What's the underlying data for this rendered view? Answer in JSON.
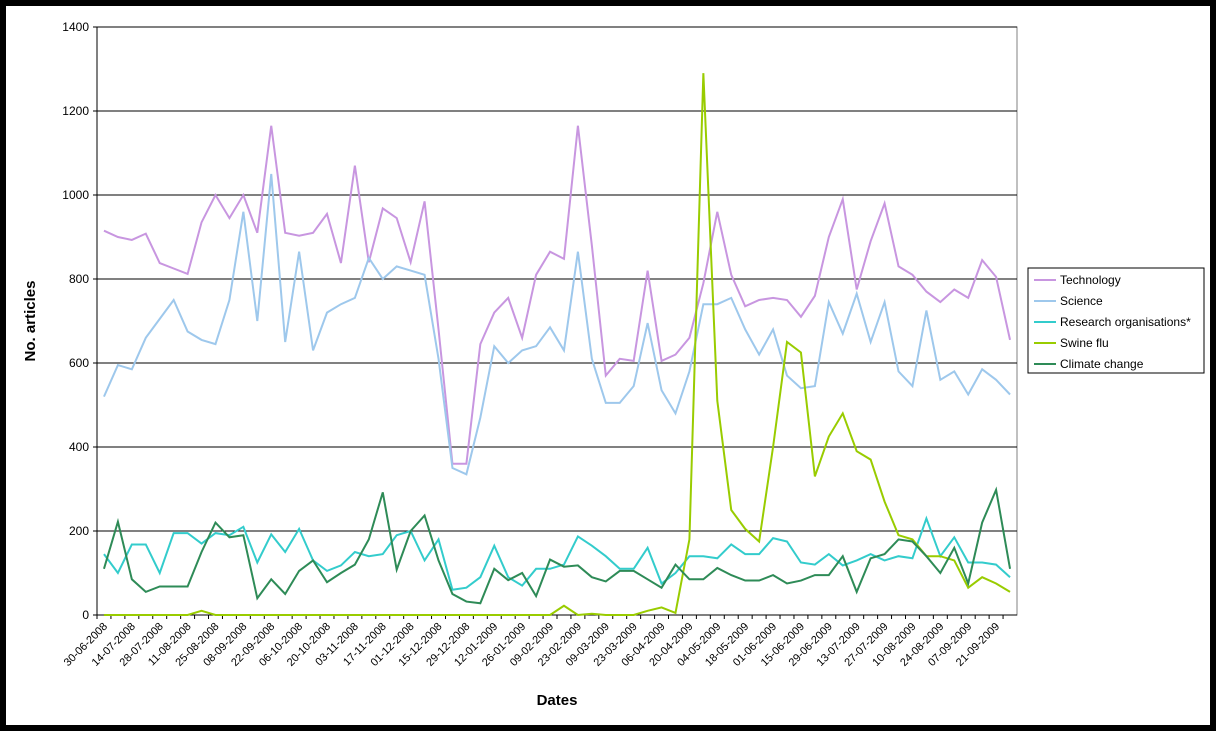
{
  "chart_data": {
    "type": "line",
    "xlabel": "Dates",
    "ylabel": "No. articles",
    "categories": [
      "30-06-2008",
      null,
      "14-07-2008",
      null,
      "28-07-2008",
      null,
      "11-08-2008",
      null,
      "25-08-2008",
      null,
      "08-09-2008",
      null,
      "22-09-2008",
      null,
      "06-10-2008",
      null,
      "20-10-2008",
      null,
      "03-11-2008",
      null,
      "17-11-2008",
      null,
      "01-12-2008",
      null,
      "15-12-2008",
      null,
      "29-12-2008",
      null,
      "12-01-2009",
      null,
      "26-01-2009",
      null,
      "09-02-2009",
      null,
      "23-02-2009",
      null,
      "09-03-2009",
      null,
      "23-03-2009",
      null,
      "06-04-2009",
      null,
      "20-04-2009",
      null,
      "04-05-2009",
      null,
      "18-05-2009",
      null,
      "01-06-2009",
      null,
      "15-06-2009",
      null,
      "29-06-2009",
      null,
      "13-07-2009",
      null,
      "27-07-2009",
      null,
      "10-08-2009",
      null,
      "24-08-2009",
      null,
      "07-09-2009",
      null,
      "21-09-2009",
      null
    ],
    "series": [
      {
        "name": "Technology",
        "color": "#c896e0",
        "values": [
          915,
          900,
          893,
          908,
          838,
          825,
          812,
          935,
          1000,
          945,
          1000,
          910,
          1165,
          910,
          903,
          910,
          955,
          838,
          1070,
          840,
          968,
          945,
          840,
          985,
          680,
          360,
          360,
          645,
          720,
          755,
          660,
          810,
          865,
          848,
          1165,
          880,
          570,
          610,
          605,
          820,
          605,
          620,
          660,
          790,
          960,
          810,
          735,
          750,
          755,
          750,
          710,
          760,
          900,
          990,
          775,
          890,
          980,
          830,
          810,
          770,
          745,
          775,
          755,
          845,
          805,
          655
        ]
      },
      {
        "name": "Science",
        "color": "#9ec8ec",
        "values": [
          520,
          595,
          585,
          660,
          705,
          750,
          675,
          655,
          645,
          750,
          960,
          700,
          1050,
          650,
          865,
          630,
          720,
          740,
          755,
          850,
          800,
          830,
          820,
          810,
          610,
          350,
          335,
          470,
          640,
          600,
          630,
          640,
          685,
          630,
          865,
          610,
          505,
          505,
          545,
          695,
          535,
          480,
          580,
          740,
          740,
          755,
          680,
          620,
          680,
          570,
          540,
          545,
          745,
          670,
          765,
          650,
          745,
          580,
          545,
          725,
          560,
          580,
          525,
          585,
          560,
          525
        ]
      },
      {
        "name": "Research organisations*",
        "color": "#33cccc",
        "values": [
          145,
          100,
          168,
          168,
          100,
          195,
          195,
          170,
          195,
          190,
          210,
          125,
          192,
          150,
          205,
          130,
          105,
          118,
          150,
          140,
          145,
          190,
          200,
          130,
          180,
          60,
          65,
          90,
          165,
          90,
          70,
          110,
          110,
          120,
          187,
          165,
          140,
          110,
          110,
          160,
          75,
          100,
          140,
          140,
          135,
          168,
          145,
          145,
          183,
          175,
          125,
          120,
          145,
          118,
          130,
          145,
          130,
          140,
          135,
          230,
          140,
          185,
          125,
          125,
          120,
          90
        ]
      },
      {
        "name": "Swine flu",
        "color": "#99cc00",
        "values": [
          0,
          0,
          0,
          0,
          0,
          0,
          0,
          10,
          0,
          0,
          0,
          0,
          0,
          0,
          0,
          0,
          0,
          0,
          0,
          0,
          0,
          0,
          0,
          0,
          0,
          0,
          0,
          0,
          0,
          0,
          0,
          0,
          0,
          22,
          0,
          3,
          0,
          0,
          0,
          10,
          18,
          5,
          180,
          1290,
          510,
          250,
          205,
          175,
          400,
          650,
          625,
          330,
          425,
          480,
          390,
          370,
          270,
          190,
          180,
          140,
          140,
          130,
          65,
          90,
          75,
          55
        ]
      },
      {
        "name": "Climate change",
        "color": "#2e8b57",
        "values": [
          110,
          222,
          85,
          55,
          68,
          68,
          68,
          150,
          220,
          185,
          190,
          40,
          85,
          50,
          105,
          130,
          78,
          100,
          120,
          180,
          292,
          108,
          200,
          237,
          130,
          50,
          32,
          28,
          110,
          83,
          100,
          45,
          132,
          115,
          118,
          90,
          80,
          105,
          105,
          85,
          65,
          120,
          85,
          85,
          112,
          95,
          82,
          82,
          95,
          75,
          82,
          95,
          95,
          140,
          55,
          135,
          145,
          180,
          175,
          140,
          100,
          160,
          75,
          220,
          298,
          110
        ]
      }
    ],
    "ylim": [
      0,
      1400
    ],
    "yticks": [
      0,
      200,
      400,
      600,
      800,
      1000,
      1200,
      1400
    ],
    "grid": true,
    "legend": "right"
  }
}
